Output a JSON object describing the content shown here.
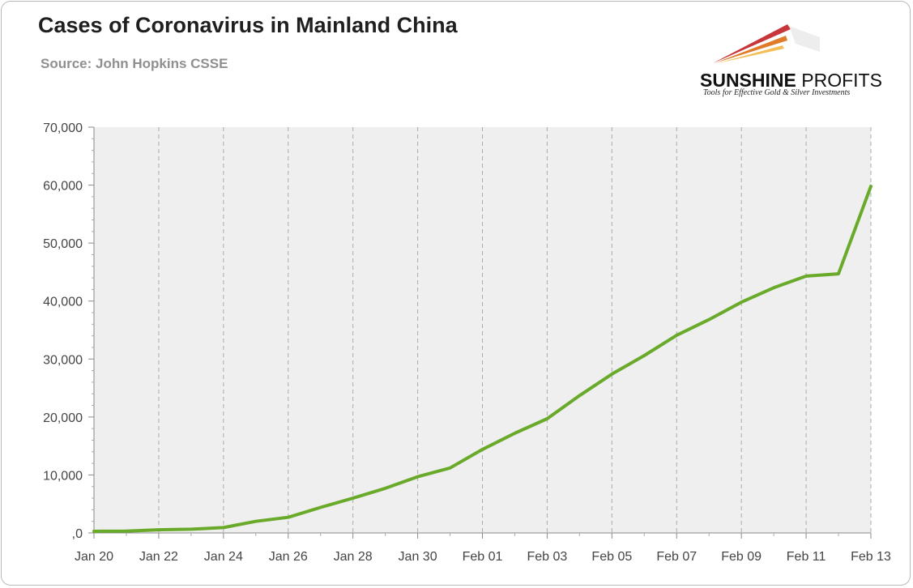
{
  "title": "Cases of Coronavirus in Mainland China",
  "subtitle": "Source: John Hopkins CSSE",
  "logo": {
    "name_bold": "SUNSHINE",
    "name_rest": " PROFITS",
    "tagline": "Tools for Effective Gold & Silver Investments",
    "colors": [
      "#c8353a",
      "#e07b2a",
      "#f2b33a"
    ]
  },
  "colors": {
    "line": "#6aaa2a",
    "plot_bg": "#efefef",
    "grid": "#aaaaaa"
  },
  "chart_data": {
    "type": "line",
    "x": [
      "Jan 20",
      "Jan 21",
      "Jan 22",
      "Jan 23",
      "Jan 24",
      "Jan 25",
      "Jan 26",
      "Jan 27",
      "Jan 28",
      "Jan 29",
      "Jan 30",
      "Jan 31",
      "Feb 01",
      "Feb 02",
      "Feb 03",
      "Feb 04",
      "Feb 05",
      "Feb 06",
      "Feb 07",
      "Feb 08",
      "Feb 09",
      "Feb 10",
      "Feb 11",
      "Feb 12",
      "Feb 13"
    ],
    "x_tick_labels": [
      "Jan 20",
      "Jan 22",
      "Jan 24",
      "Jan 26",
      "Jan 28",
      "Jan 30",
      "Feb 01",
      "Feb 03",
      "Feb 05",
      "Feb 07",
      "Feb 09",
      "Feb 11",
      "Feb 13"
    ],
    "series": [
      {
        "values": [
          278,
          326,
          547,
          639,
          916,
          2000,
          2700,
          4400,
          6000,
          7700,
          9700,
          11200,
          14400,
          17200,
          19700,
          23700,
          27400,
          30600,
          34100,
          36800,
          39800,
          42300,
          44300,
          44700,
          59800
        ]
      }
    ],
    "y_ticks": [
      0,
      10000,
      20000,
      30000,
      40000,
      50000,
      60000,
      70000
    ],
    "y_tick_labels": [
      ",0",
      "10,000",
      "20,000",
      "30,000",
      "40,000",
      "50,000",
      "60,000",
      "70,000"
    ],
    "ylim": [
      0,
      70000
    ],
    "xlabel": "",
    "ylabel": "",
    "grid": "vertical dashed",
    "legend": "none"
  }
}
